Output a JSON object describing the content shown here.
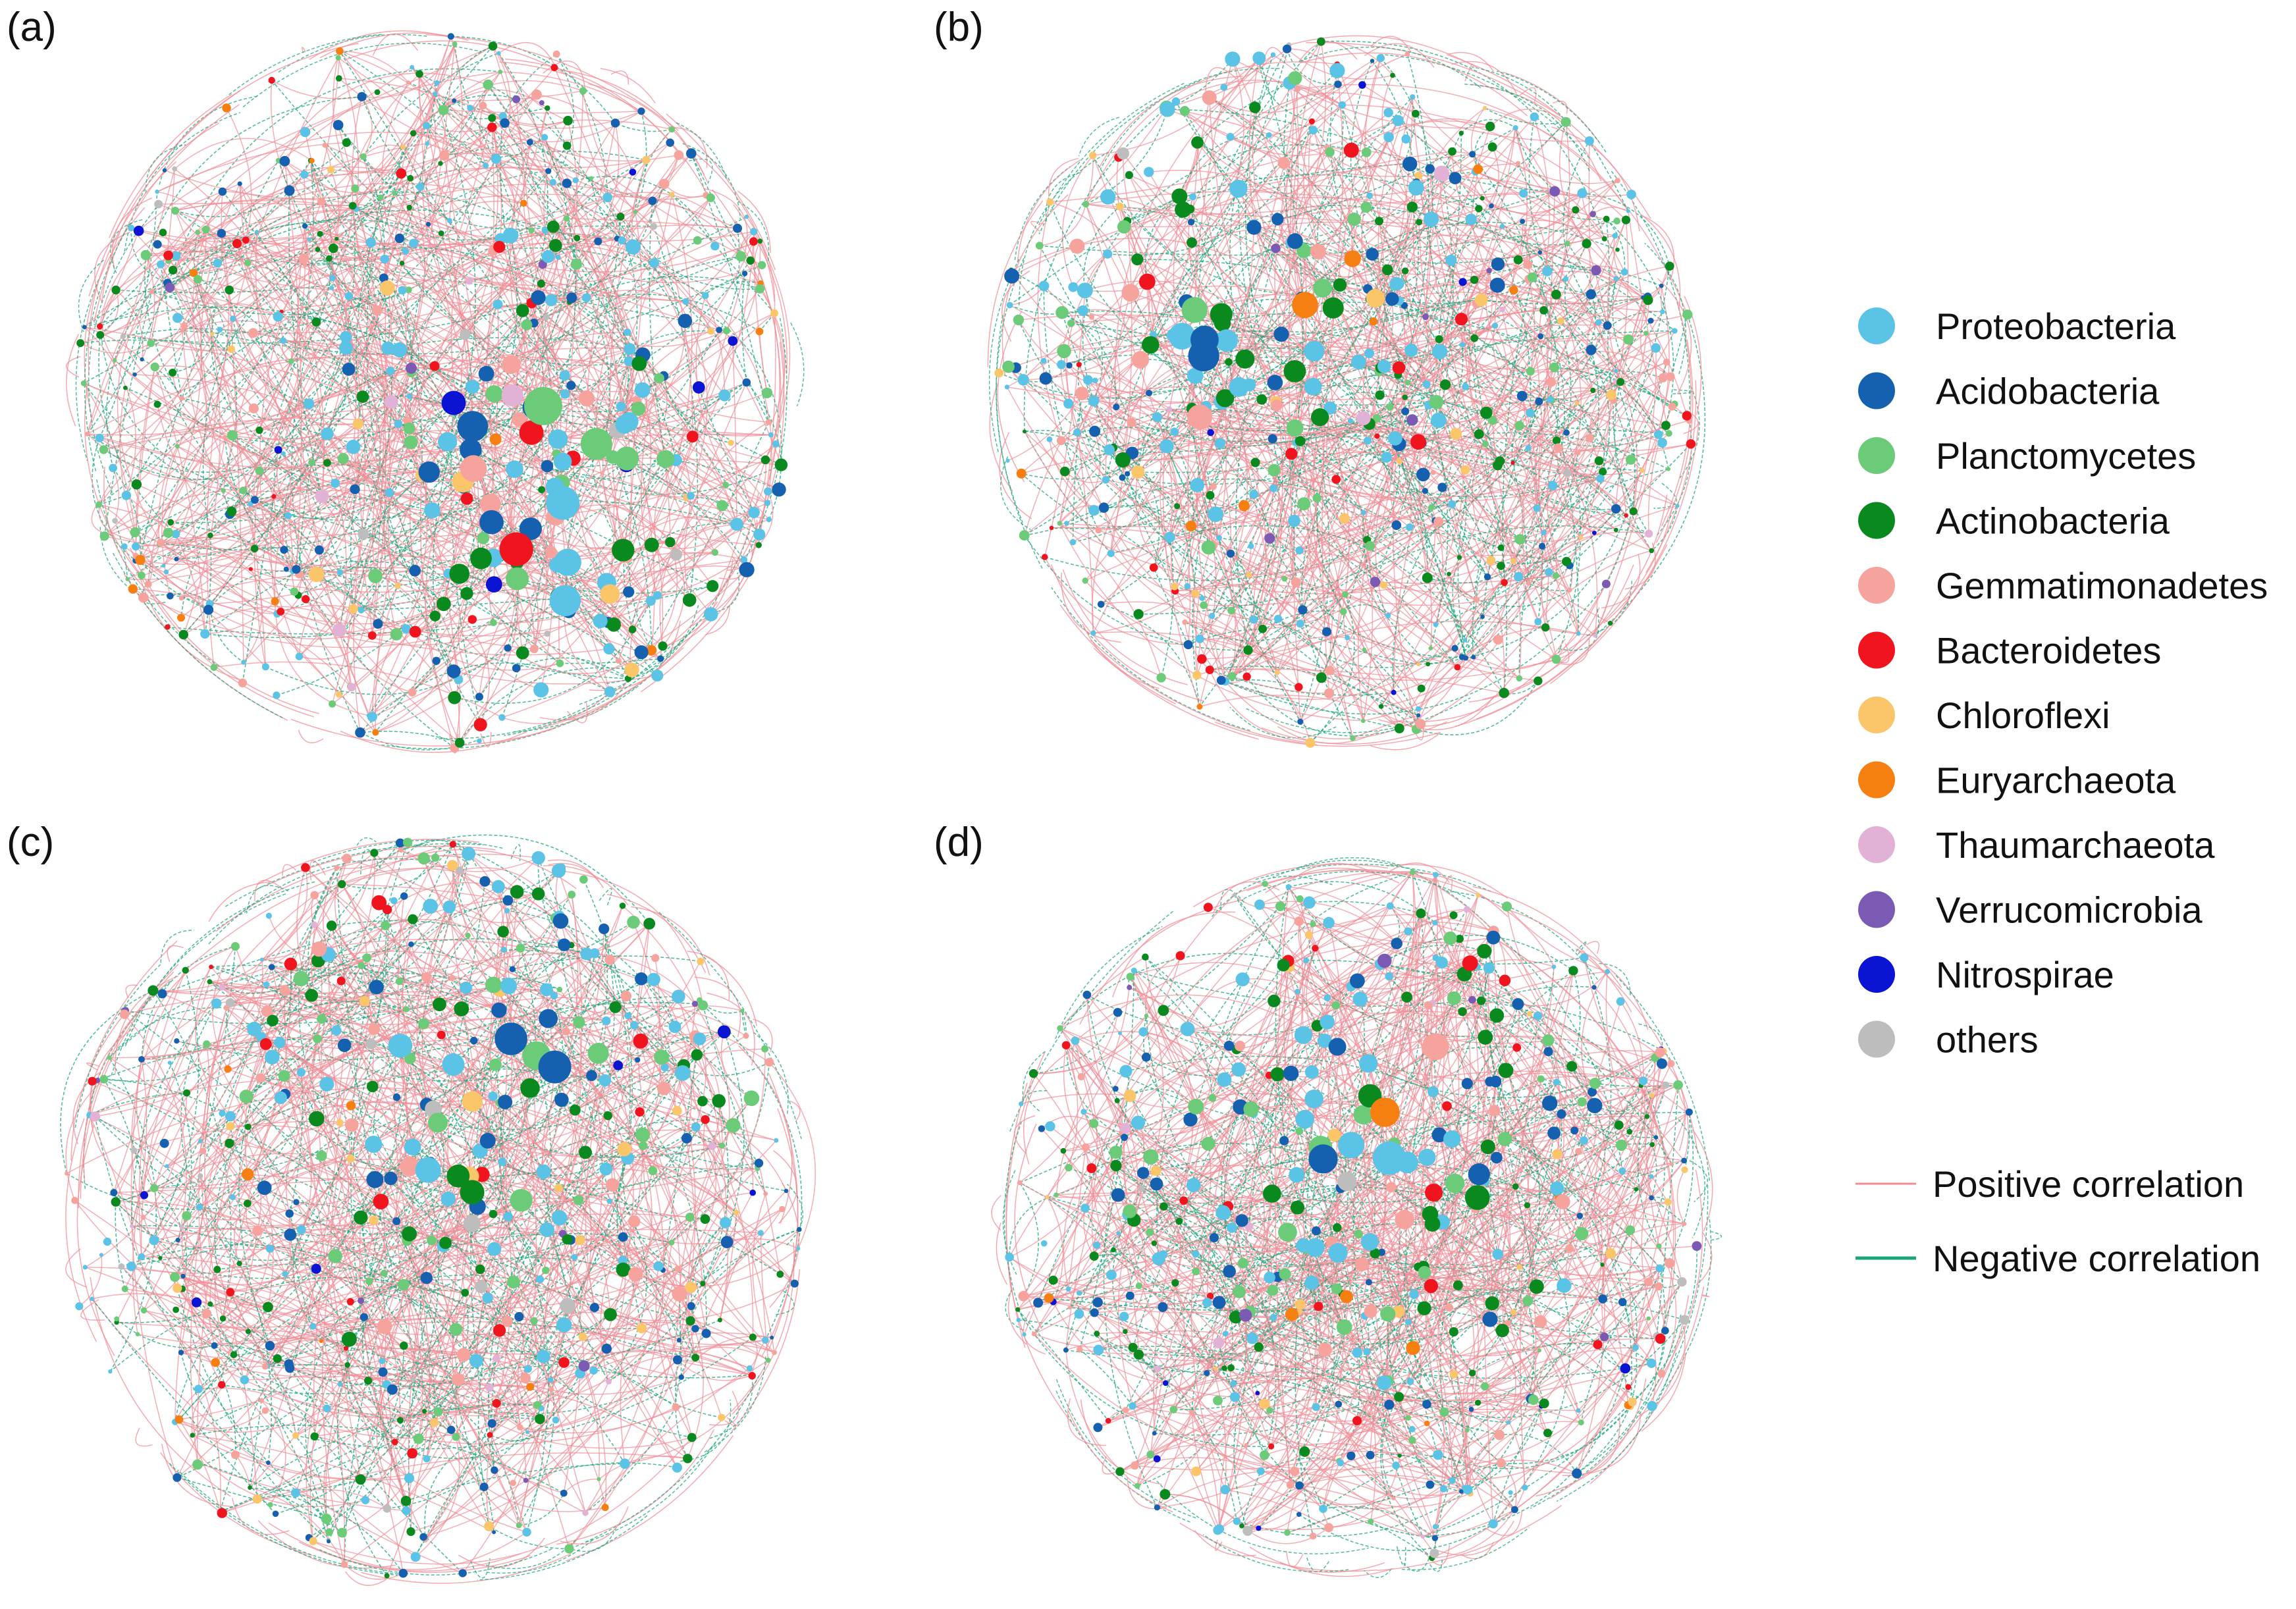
{
  "panels": [
    {
      "label": "(a)"
    },
    {
      "label": "(b)"
    },
    {
      "label": "(c)"
    },
    {
      "label": "(d)"
    }
  ],
  "legend": {
    "phyla": [
      {
        "name": "Proteobacteria",
        "color": "#5BC3E6"
      },
      {
        "name": "Acidobacteria",
        "color": "#1660B0"
      },
      {
        "name": "Planctomycetes",
        "color": "#6CCB78"
      },
      {
        "name": "Actinobacteria",
        "color": "#0A8A1E"
      },
      {
        "name": "Gemmatimonadetes",
        "color": "#F7A39D"
      },
      {
        "name": "Bacteroidetes",
        "color": "#F0141E"
      },
      {
        "name": "Chloroflexi",
        "color": "#FBC56A"
      },
      {
        "name": "Euryarchaeota",
        "color": "#F67F12"
      },
      {
        "name": "Thaumarchaeota",
        "color": "#E1B1D6"
      },
      {
        "name": "Verrucomicrobia",
        "color": "#7B5AB4"
      },
      {
        "name": "Nitrospirae",
        "color": "#0A14D2"
      },
      {
        "name": "others",
        "color": "#BDBDBD"
      }
    ],
    "edges": [
      {
        "name": "Positive correlation",
        "color": "#F08C96"
      },
      {
        "name": "Negative correlation",
        "color": "#1AA57A"
      }
    ]
  }
}
